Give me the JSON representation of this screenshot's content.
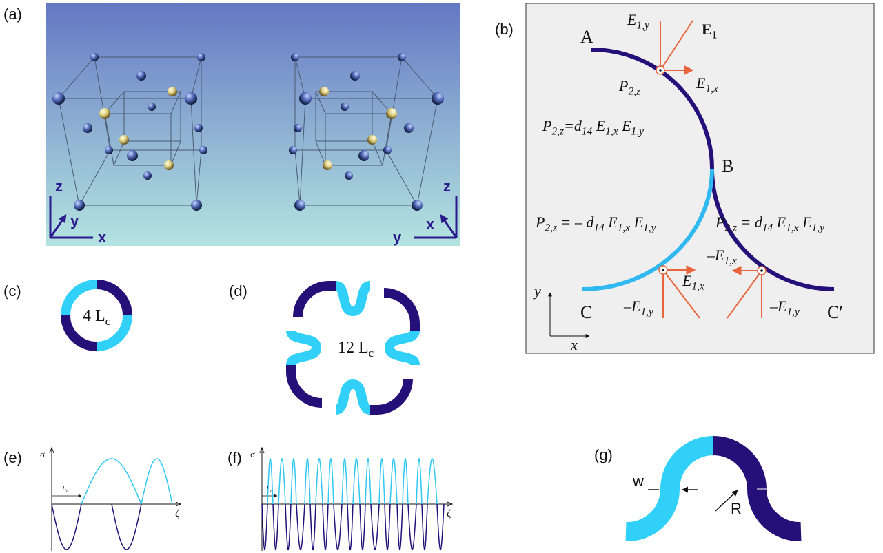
{
  "panel_labels": [
    "(a)",
    "(b)",
    "(c)",
    "(d)",
    "(e)",
    "(f)",
    "(g)"
  ],
  "a": {
    "left_axes": [
      "z",
      "y",
      "x"
    ],
    "right_axes": [
      "z",
      "x",
      "y"
    ]
  },
  "b": {
    "points": [
      "A",
      "B",
      "C",
      "C′"
    ],
    "labels": [
      [
        {
          "t": "E",
          "sub": "1,y"
        }
      ],
      [
        {
          "t": "E",
          "sub": "1"
        }
      ],
      [
        {
          "t": "P",
          "sub": "2,z"
        }
      ],
      [
        {
          "t": "E",
          "sub": "1,x"
        }
      ],
      [
        {
          "t": "E",
          "sub": "1,x"
        }
      ],
      [
        {
          "t": "–E",
          "sub": "1,y"
        }
      ],
      [
        {
          "t": "–E",
          "sub": "1,x"
        }
      ],
      [
        {
          "t": "–E",
          "sub": "1,y"
        }
      ]
    ],
    "equations": [
      [
        {
          "t": "P",
          "sub": "2,z"
        },
        {
          "t": "=d",
          "sub": "14"
        },
        {
          "t": " E",
          "sub": "1,x"
        },
        {
          "t": " E",
          "sub": "1,y"
        }
      ],
      [
        {
          "t": "P",
          "sub": "2,z"
        },
        {
          "t": " = – d",
          "sub": "14"
        },
        {
          "t": " E",
          "sub": "1,x"
        },
        {
          "t": " E",
          "sub": "1,y"
        }
      ],
      [
        {
          "t": "P",
          "sub": "2,z"
        },
        {
          "t": " = d",
          "sub": "14"
        },
        {
          "t": " E",
          "sub": "1,x"
        },
        {
          "t": " E",
          "sub": "1,y"
        }
      ]
    ],
    "axes": [
      "y",
      "x"
    ]
  },
  "c": {
    "label": [
      {
        "t": "4 L",
        "sub": "c"
      }
    ]
  },
  "d": {
    "label": [
      {
        "t": "12 L",
        "sub": "c"
      }
    ]
  },
  "e": {
    "y_label": "σ",
    "x_label": "ζ",
    "period_label": [
      {
        "t": "L",
        "sub": "c"
      }
    ]
  },
  "f": {
    "y_label": "σ",
    "x_label": "ζ",
    "period_label": [
      {
        "t": "L",
        "sub": "c"
      }
    ]
  },
  "g": {
    "width_label": "w",
    "radius_label": "R"
  }
}
